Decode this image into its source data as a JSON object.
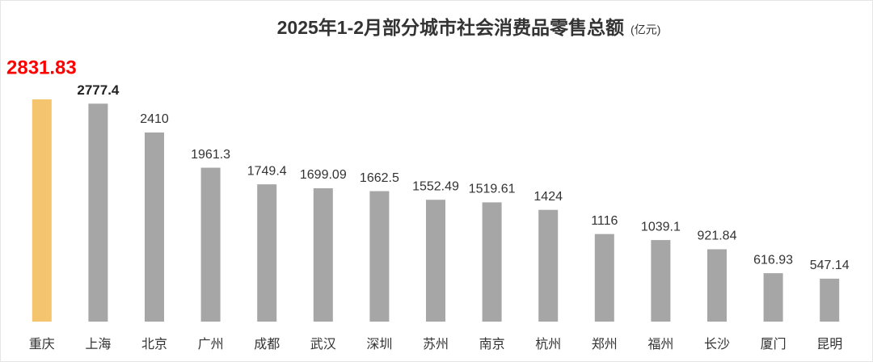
{
  "chart_data": {
    "type": "bar",
    "title": "2025年1-2月部分城市社会消费品零售总额",
    "subtitle": "(亿元)",
    "categories": [
      "重庆",
      "上海",
      "北京",
      "广州",
      "成都",
      "武汉",
      "深圳",
      "苏州",
      "南京",
      "杭州",
      "郑州",
      "福州",
      "长沙",
      "厦门",
      "昆明"
    ],
    "values": [
      2831.83,
      2777.4,
      2410,
      1961.3,
      1749.4,
      1699.09,
      1662.5,
      1552.49,
      1519.61,
      1424,
      1116,
      1039.1,
      921.84,
      616.93,
      547.14
    ],
    "colors": [
      "#f4c46e",
      "#a6a6a6",
      "#a6a6a6",
      "#a6a6a6",
      "#a6a6a6",
      "#a6a6a6",
      "#a6a6a6",
      "#a6a6a6",
      "#a6a6a6",
      "#a6a6a6",
      "#a6a6a6",
      "#a6a6a6",
      "#a6a6a6",
      "#a6a6a6",
      "#a6a6a6"
    ]
  }
}
